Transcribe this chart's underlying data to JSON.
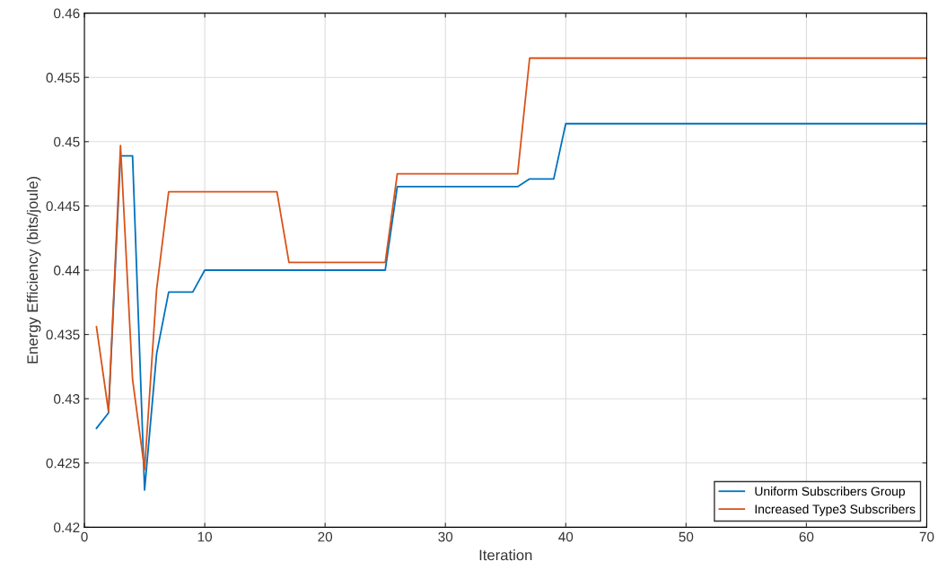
{
  "chart_data": {
    "type": "line",
    "xlabel": "Iteration",
    "ylabel": "Energy Efficiency (bits/joule)",
    "xlim": [
      0,
      70
    ],
    "xticks": [
      0,
      10,
      20,
      30,
      40,
      50,
      60,
      70
    ],
    "ylim": [
      0.42,
      0.46
    ],
    "yticks": [
      0.42,
      0.425,
      0.43,
      0.435,
      0.44,
      0.445,
      0.45,
      0.455,
      0.46
    ],
    "grid": true,
    "legend": "bottom right",
    "line_style": "solid",
    "marker": "none",
    "series": [
      {
        "name": "Uniform Subscribers Group",
        "color": "#0072bd",
        "x": [
          1,
          2,
          3,
          4,
          5,
          6,
          7,
          9,
          10,
          25,
          26,
          36,
          37,
          39,
          40,
          70
        ],
        "values": [
          0.4277,
          0.4289,
          0.4489,
          0.4489,
          0.4229,
          0.4335,
          0.4383,
          0.4383,
          0.44,
          0.44,
          0.4465,
          0.4465,
          0.4471,
          0.4471,
          0.4514,
          0.4514
        ]
      },
      {
        "name": "Increased Type3 Subscribers",
        "color": "#d95319",
        "x": [
          1,
          2,
          3,
          4,
          5,
          6,
          7,
          16,
          17,
          25,
          26,
          36,
          37,
          70
        ],
        "values": [
          0.4356,
          0.429,
          0.4497,
          0.4315,
          0.4245,
          0.4385,
          0.4461,
          0.4461,
          0.4406,
          0.4406,
          0.4475,
          0.4475,
          0.4565,
          0.4565
        ]
      }
    ]
  }
}
